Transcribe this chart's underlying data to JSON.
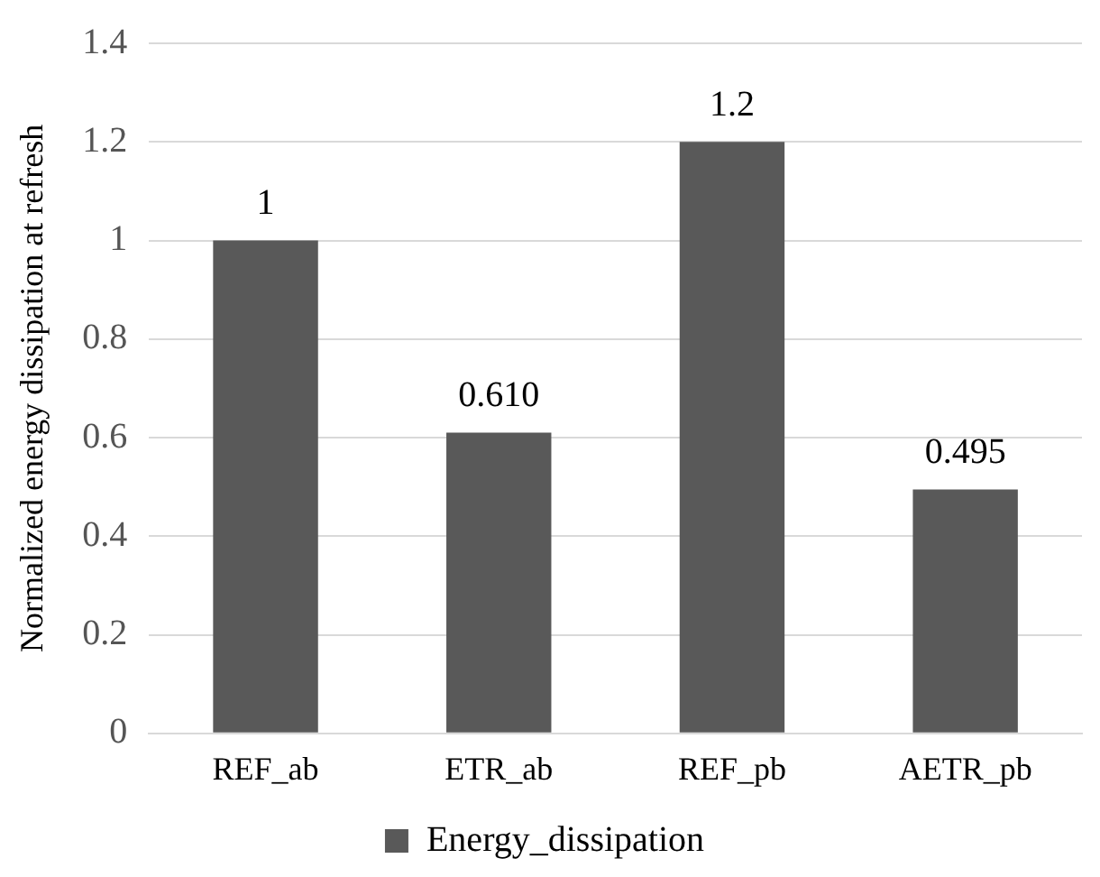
{
  "chart_data": {
    "type": "bar",
    "ylabel": "Normalized energy dissipation at refresh",
    "categories": [
      "REF_ab",
      "ETR_ab",
      "REF_pb",
      "AETR_pb"
    ],
    "series": [
      {
        "name": "Energy_dissipation",
        "color": "#595959",
        "values": [
          1,
          0.61,
          1.2,
          0.495
        ],
        "value_labels": [
          "1",
          "0.610",
          "1.2",
          "0.495"
        ]
      }
    ],
    "ylim": [
      0,
      1.4
    ],
    "yticks": [
      0,
      0.2,
      0.4,
      0.6,
      0.8,
      1,
      1.2,
      1.4
    ],
    "grid": "y",
    "legend": "bottom"
  }
}
